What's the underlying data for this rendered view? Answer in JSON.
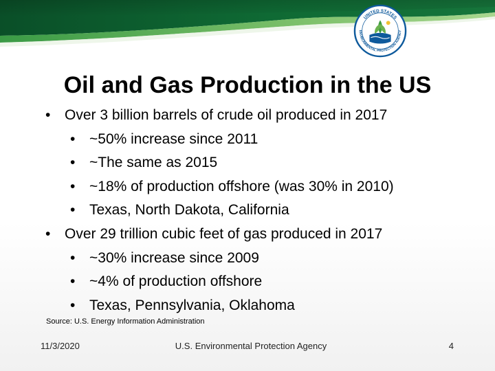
{
  "logo": {
    "text_top": "UNITED STATES",
    "text_bottom": "ENVIRONMENTAL PROTECTION AGENCY",
    "icon": "epa-seal-icon"
  },
  "title": "Oil and Gas Production in the US",
  "bullets": [
    {
      "level": 1,
      "text": "Over 3 billion barrels of crude oil produced in 2017"
    },
    {
      "level": 2,
      "text": "~50% increase since 2011"
    },
    {
      "level": 2,
      "text": "~The same as 2015"
    },
    {
      "level": 2,
      "text": "~18% of production offshore (was 30% in 2010)"
    },
    {
      "level": 2,
      "text": "Texas, North Dakota, California"
    },
    {
      "level": 1,
      "text": "Over 29 trillion cubic feet of gas produced in 2017"
    },
    {
      "level": 2,
      "text": "~30% increase since 2009"
    },
    {
      "level": 2,
      "text": "~4% of production offshore"
    },
    {
      "level": 2,
      "text": "Texas, Pennsylvania, Oklahoma"
    }
  ],
  "bullet_symbol": "•",
  "source": "Source: U.S. Energy Information Administration",
  "footer": {
    "date": "11/3/2020",
    "agency": "U.S. Environmental Protection Agency",
    "page": "4"
  },
  "colors": {
    "banner_dark": "#0b5e2f",
    "banner_mid": "#2f8a3e",
    "banner_light": "#7fc26b",
    "logo_blue": "#0e5a9c"
  }
}
